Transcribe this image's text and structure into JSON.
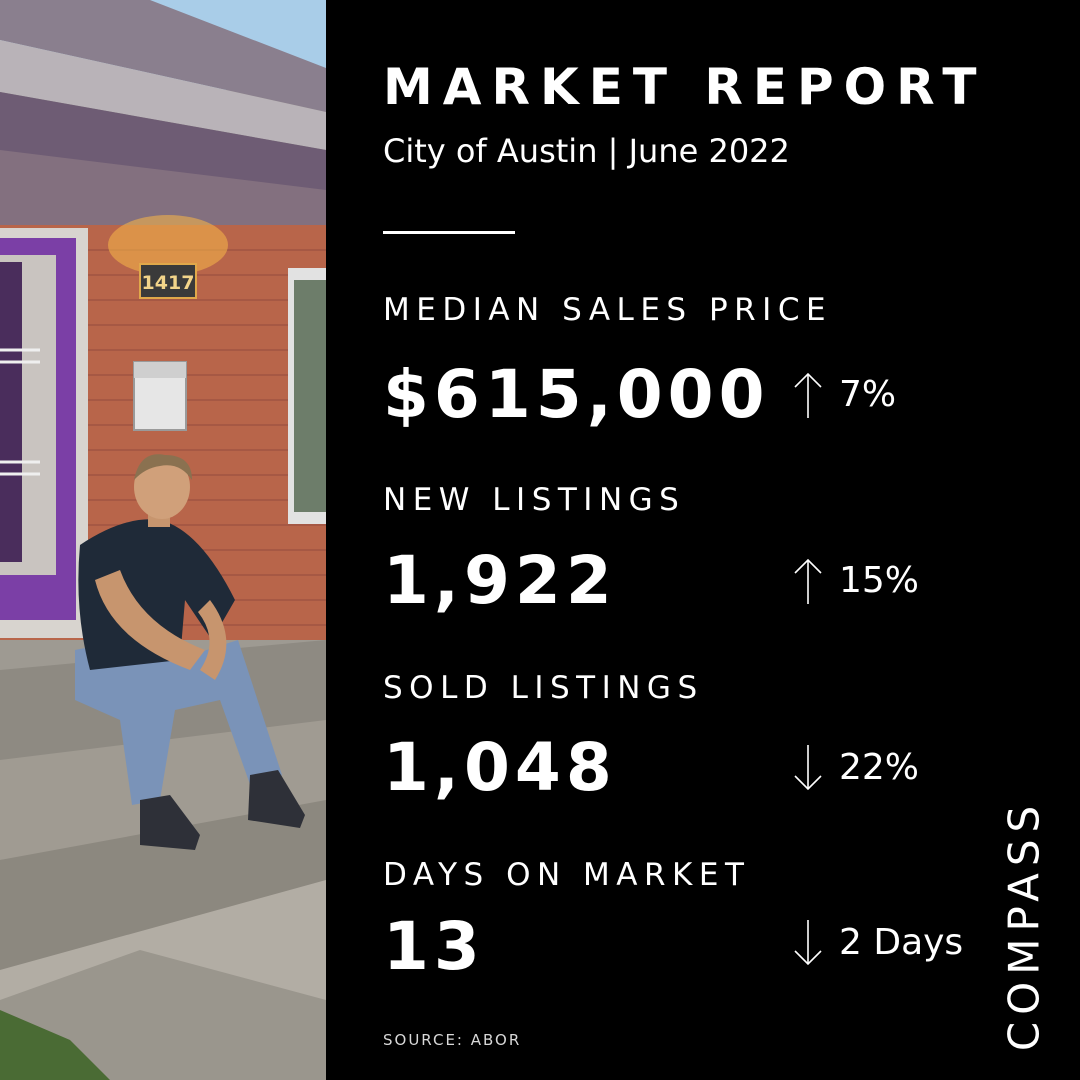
{
  "header": {
    "title": "MARKET REPORT",
    "subtitle": "City of Austin | June 2022"
  },
  "metrics": [
    {
      "label": "MEDIAN SALES PRICE",
      "value": "$615,000",
      "direction": "up",
      "change": "7%"
    },
    {
      "label": "NEW LISTINGS",
      "value": "1,922",
      "direction": "up",
      "change": "15%"
    },
    {
      "label": "SOLD LISTINGS",
      "value": "1,048",
      "direction": "down",
      "change": "22%"
    },
    {
      "label": "DAYS ON MARKET",
      "value": "13",
      "direction": "down",
      "change": "2 Days"
    }
  ],
  "footer": {
    "source": "SOURCE: ABOR",
    "brand": "COMPASS"
  },
  "photo": {
    "house_number": "1417"
  },
  "colors": {
    "background": "#000000",
    "text": "#ffffff",
    "door": "#7b3fa6",
    "brick": "#b8654a"
  }
}
